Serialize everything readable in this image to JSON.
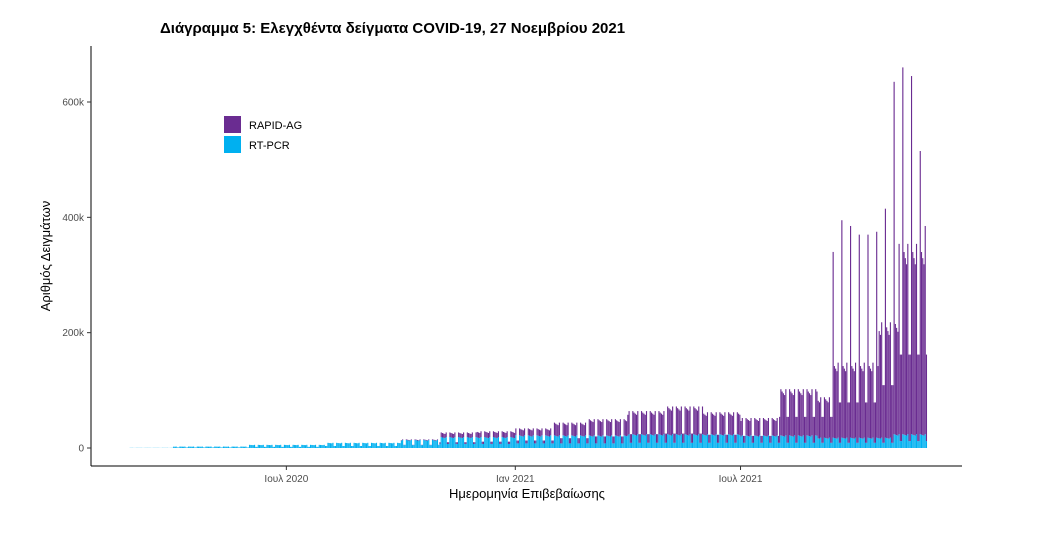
{
  "chart_data": {
    "type": "bar",
    "title": "Διάγραμμα 5: Ελεγχθέντα δείγματα COVID-19, 27 Νοεμβρίου 2021",
    "xlabel": "Ημερομηνία Επιβεβαίωσης",
    "ylabel": "Αριθμός Δειγμάτων",
    "stacked": true,
    "ylim": [
      0,
      700000
    ],
    "xlim": [
      "2020-02-26",
      "2021-11-27"
    ],
    "y_ticks": [
      {
        "value": 0,
        "label": "0"
      },
      {
        "value": 200000,
        "label": "200k"
      },
      {
        "value": 400000,
        "label": "400k"
      },
      {
        "value": 600000,
        "label": "600k"
      }
    ],
    "x_ticks": [
      {
        "date": "2020-07-01",
        "label": "Ιουλ 2020"
      },
      {
        "date": "2021-01-01",
        "label": "Ιαν 2021"
      },
      {
        "date": "2021-07-01",
        "label": "Ιουλ 2021"
      }
    ],
    "legend": {
      "position": "top-left",
      "entries": [
        {
          "name": "RAPID-AG",
          "color": "#6a2c91"
        },
        {
          "name": "RT-PCR",
          "color": "#00b0f0"
        }
      ]
    },
    "grid": false,
    "series": [
      {
        "name": "RT-PCR",
        "color": "#00b0f0",
        "segments": [
          {
            "from": "2020-02-26",
            "to": "2020-04-01",
            "weekday": 300,
            "weekend": 150
          },
          {
            "from": "2020-04-01",
            "to": "2020-06-01",
            "weekday": 2500,
            "weekend": 1000
          },
          {
            "from": "2020-06-01",
            "to": "2020-08-01",
            "weekday": 5500,
            "weekend": 2000
          },
          {
            "from": "2020-08-01",
            "to": "2020-10-01",
            "weekday": 9000,
            "weekend": 3500
          },
          {
            "from": "2020-10-01",
            "to": "2020-11-01",
            "weekday": 14000,
            "weekend": 5000
          },
          {
            "from": "2020-11-01",
            "to": "2021-01-01",
            "weekday": 19000,
            "weekend": 7000
          },
          {
            "from": "2021-01-01",
            "to": "2021-04-01",
            "weekday": 22000,
            "weekend": 8000
          },
          {
            "from": "2021-04-01",
            "to": "2021-07-01",
            "weekday": 24000,
            "weekend": 9000
          },
          {
            "from": "2021-07-01",
            "to": "2021-09-01",
            "weekday": 22000,
            "weekend": 9000
          },
          {
            "from": "2021-09-01",
            "to": "2021-11-01",
            "weekday": 18000,
            "weekend": 9000
          },
          {
            "from": "2021-11-01",
            "to": "2021-11-28",
            "weekday": 24000,
            "weekend": 12000
          }
        ]
      },
      {
        "name": "RAPID-AG",
        "color": "#6a2c91",
        "segments": [
          {
            "from": "2020-02-26",
            "to": "2020-10-01",
            "weekday": 0,
            "weekend": 0
          },
          {
            "from": "2020-10-01",
            "to": "2020-11-01",
            "weekday": 1000,
            "weekend": 500
          },
          {
            "from": "2020-11-01",
            "to": "2020-12-01",
            "weekday": 8000,
            "weekend": 3000
          },
          {
            "from": "2020-12-01",
            "to": "2021-01-01",
            "weekday": 10000,
            "weekend": 4000
          },
          {
            "from": "2021-01-01",
            "to": "2021-02-01",
            "weekday": 12000,
            "weekend": 5000
          },
          {
            "from": "2021-02-01",
            "to": "2021-03-01",
            "weekday": 22000,
            "weekend": 9000
          },
          {
            "from": "2021-03-01",
            "to": "2021-04-01",
            "weekday": 28000,
            "weekend": 12000
          },
          {
            "from": "2021-04-01",
            "to": "2021-05-01",
            "weekday": 40000,
            "weekend": 15000
          },
          {
            "from": "2021-05-01",
            "to": "2021-06-01",
            "weekday": 48000,
            "weekend": 16000
          },
          {
            "from": "2021-06-01",
            "to": "2021-07-01",
            "weekday": 38000,
            "weekend": 14000
          },
          {
            "from": "2021-07-01",
            "to": "2021-08-01",
            "weekday": 30000,
            "weekend": 12000
          },
          {
            "from": "2021-08-01",
            "to": "2021-09-01",
            "weekday": 80000,
            "weekend": 45000
          },
          {
            "from": "2021-09-01",
            "to": "2021-09-13",
            "weekday": 70000,
            "weekend": 45000
          },
          {
            "from": "2021-09-13",
            "to": "2021-10-20",
            "weekday": 130000,
            "weekend": 70000
          },
          {
            "from": "2021-10-20",
            "to": "2021-11-05",
            "weekday": 200000,
            "weekend": 100000
          },
          {
            "from": "2021-11-05",
            "to": "2021-11-28",
            "weekday": 330000,
            "weekend": 150000
          }
        ],
        "peaks": [
          {
            "date": "2021-09-13",
            "total": 340000
          },
          {
            "date": "2021-09-20",
            "total": 395000
          },
          {
            "date": "2021-09-27",
            "total": 385000
          },
          {
            "date": "2021-10-04",
            "total": 370000
          },
          {
            "date": "2021-10-11",
            "total": 370000
          },
          {
            "date": "2021-10-18",
            "total": 375000
          },
          {
            "date": "2021-10-25",
            "total": 415000
          },
          {
            "date": "2021-11-01",
            "total": 635000
          },
          {
            "date": "2021-11-08",
            "total": 660000
          },
          {
            "date": "2021-11-15",
            "total": 645000
          },
          {
            "date": "2021-11-22",
            "total": 515000
          },
          {
            "date": "2021-11-26",
            "total": 385000
          }
        ]
      }
    ]
  }
}
